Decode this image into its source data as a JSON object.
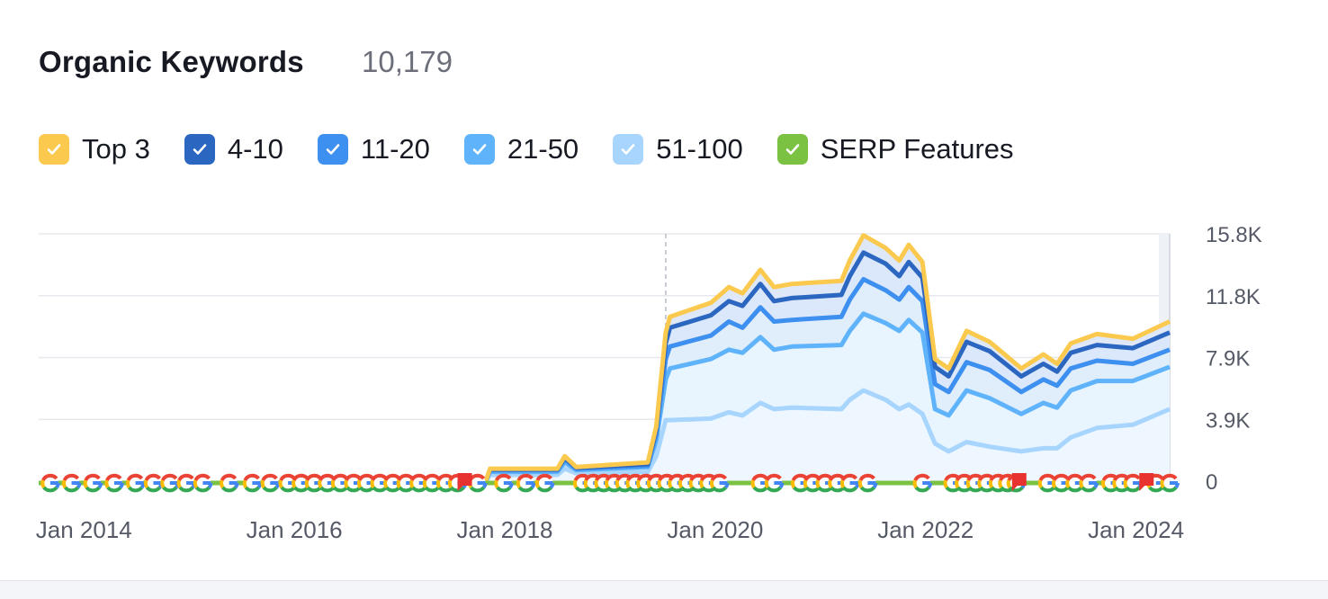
{
  "header": {
    "title": "Organic Keywords",
    "count": "10,179"
  },
  "legend": [
    {
      "label": "Top 3",
      "color": "#fbc94e",
      "checked": true
    },
    {
      "label": "4-10",
      "color": "#2b66c0",
      "checked": true
    },
    {
      "label": "11-20",
      "color": "#3d8ff0",
      "checked": true
    },
    {
      "label": "21-50",
      "color": "#5fb3fb",
      "checked": true
    },
    {
      "label": "51-100",
      "color": "#a8d5fd",
      "checked": true
    },
    {
      "label": "SERP Features",
      "color": "#7cc242",
      "checked": true
    }
  ],
  "chart_data": {
    "type": "area",
    "title": "Organic Keywords",
    "xlim": [
      2013.57,
      2024.32
    ],
    "ylim": [
      0,
      15.8
    ],
    "y_unit": "K",
    "yticks": [
      {
        "v": 0,
        "label": "0"
      },
      {
        "v": 3.95,
        "label": "3.9K"
      },
      {
        "v": 7.9,
        "label": "7.9K"
      },
      {
        "v": 11.85,
        "label": "11.8K"
      },
      {
        "v": 15.8,
        "label": "15.8K"
      }
    ],
    "xticks": [
      {
        "v": 2014.0,
        "label": "Jan 2014"
      },
      {
        "v": 2016.0,
        "label": "Jan 2016"
      },
      {
        "v": 2018.0,
        "label": "Jan 2018"
      },
      {
        "v": 2020.0,
        "label": "Jan 2020"
      },
      {
        "v": 2022.0,
        "label": "Jan 2022"
      },
      {
        "v": 2024.0,
        "label": "Jan 2024"
      }
    ],
    "grid": true,
    "marker_line": 2019.53,
    "x": [
      2017.82,
      2017.86,
      2018.5,
      2018.57,
      2018.68,
      2019.36,
      2019.44,
      2019.53,
      2019.57,
      2019.96,
      2020.13,
      2020.26,
      2020.43,
      2020.56,
      2020.73,
      2021.2,
      2021.28,
      2021.41,
      2021.62,
      2021.75,
      2021.84,
      2021.97,
      2022.09,
      2022.22,
      2022.39,
      2022.61,
      2022.91,
      2023.12,
      2023.25,
      2023.38,
      2023.63,
      2023.97,
      2024.32
    ],
    "series": [
      {
        "name": "Top 3",
        "color": "#fbc94e",
        "values": [
          0,
          0.8,
          0.8,
          1.6,
          0.9,
          1.2,
          3.5,
          9.5,
          10.5,
          11.4,
          12.4,
          12.0,
          13.5,
          12.4,
          12.6,
          12.8,
          14.1,
          15.7,
          14.9,
          14.1,
          15.1,
          14.0,
          7.8,
          7.2,
          9.6,
          8.9,
          7.2,
          8.1,
          7.5,
          8.8,
          9.4,
          9.1,
          10.2
        ]
      },
      {
        "name": "4-10",
        "color": "#2b66c0",
        "values": [
          0,
          0.75,
          0.75,
          1.5,
          0.85,
          1.1,
          3.3,
          8.8,
          9.8,
          10.6,
          11.5,
          11.2,
          12.6,
          11.5,
          11.7,
          11.9,
          13.1,
          14.6,
          13.9,
          13.1,
          14.0,
          13.0,
          7.3,
          6.7,
          8.9,
          8.3,
          6.7,
          7.5,
          7.0,
          8.2,
          8.7,
          8.5,
          9.5
        ]
      },
      {
        "name": "11-20",
        "color": "#3d8ff0",
        "values": [
          0,
          0.7,
          0.7,
          1.4,
          0.8,
          1.0,
          3.0,
          7.8,
          8.6,
          9.3,
          10.2,
          9.8,
          11.1,
          10.2,
          10.3,
          10.5,
          11.6,
          12.9,
          12.2,
          11.6,
          12.4,
          11.5,
          6.2,
          5.7,
          7.6,
          7.1,
          5.7,
          6.5,
          6.1,
          7.2,
          7.7,
          7.5,
          8.4
        ]
      },
      {
        "name": "21-50",
        "color": "#5fb3fb",
        "values": [
          0,
          0.6,
          0.6,
          1.2,
          0.7,
          0.9,
          2.6,
          6.5,
          7.2,
          7.8,
          8.4,
          8.2,
          9.2,
          8.4,
          8.6,
          8.7,
          9.6,
          10.7,
          10.1,
          9.6,
          10.3,
          9.5,
          4.6,
          4.2,
          5.8,
          5.3,
          4.3,
          5.0,
          4.7,
          5.8,
          6.4,
          6.4,
          7.3
        ]
      },
      {
        "name": "51-100",
        "color": "#a8d5fd",
        "values": [
          0,
          0.4,
          0.4,
          0.8,
          0.5,
          0.6,
          1.6,
          3.9,
          3.9,
          4.0,
          4.4,
          4.2,
          5.0,
          4.6,
          4.7,
          4.6,
          5.2,
          5.8,
          5.2,
          4.6,
          4.9,
          4.3,
          2.4,
          1.9,
          2.5,
          2.2,
          1.9,
          2.1,
          2.1,
          2.8,
          3.4,
          3.6,
          4.6
        ]
      }
    ],
    "serp_feature_clusters": [
      [
        2013.68,
        2014.49,
        5
      ],
      [
        2014.66,
        2015.13,
        4
      ],
      [
        2015.38,
        2015.38,
        1
      ],
      [
        2015.6,
        2015.77,
        2
      ],
      [
        2015.94,
        2017.31,
        12
      ],
      [
        2017.44,
        2017.55,
        2
      ],
      [
        2017.74,
        2017.99,
        2
      ],
      [
        2018.2,
        2018.38,
        2
      ],
      [
        2018.74,
        2020.04,
        14
      ],
      [
        2020.43,
        2020.56,
        2
      ],
      [
        2020.81,
        2021.28,
        5
      ],
      [
        2021.45,
        2021.45,
        1
      ],
      [
        2021.97,
        2021.97,
        1
      ],
      [
        2022.26,
        2022.69,
        5
      ],
      [
        2022.78,
        2022.86,
        2
      ],
      [
        2023.16,
        2023.55,
        4
      ],
      [
        2023.76,
        2023.97,
        3
      ],
      [
        2024.19,
        2024.32,
        2
      ]
    ],
    "notes": [
      2017.62,
      2022.89,
      2024.1
    ]
  }
}
